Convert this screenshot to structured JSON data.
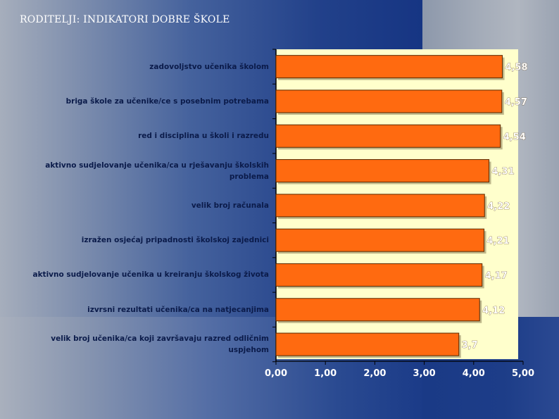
{
  "title": "RODITELJI: INDIKATORI DOBRE ŠKOLE",
  "colors": {
    "bar": "#ff6a10",
    "bar_edge": "#5a2a00",
    "panel": "#ffffcc",
    "value_text": "#ffffff",
    "axis_text": "#ffffff"
  },
  "chart_data": {
    "type": "bar",
    "orientation": "horizontal",
    "categories": [
      "zadovoljstvo učenika školom",
      "briga škole za učenike/ce s posebnim potrebama",
      "red i disciplina u školi i razredu",
      "aktivno sudjelovanje učenika/ca u rješavanju školskih problema",
      "velik broj računala",
      "izražen osjećaj pripadnosti školskoj zajednici",
      "aktivno sudjelovanje učenika u kreiranju školskog života",
      "izvrsni rezultati učenika/ca na natjecanjima",
      "velik broj učenika/ca koji završavaju razred odličnim uspjehom"
    ],
    "values": [
      4.58,
      4.57,
      4.54,
      4.31,
      4.22,
      4.21,
      4.17,
      4.12,
      3.7
    ],
    "value_labels": [
      "4,58",
      "4,57",
      "4,54",
      "4,31",
      "4,22",
      "4,21",
      "4,17",
      "4,12",
      "3,7"
    ],
    "xlim": [
      0,
      5
    ],
    "xticks": [
      "0,00",
      "1,00",
      "2,00",
      "3,00",
      "4,00",
      "5,00"
    ],
    "xlabel": "",
    "ylabel": "",
    "grid": false,
    "legend": "none"
  }
}
